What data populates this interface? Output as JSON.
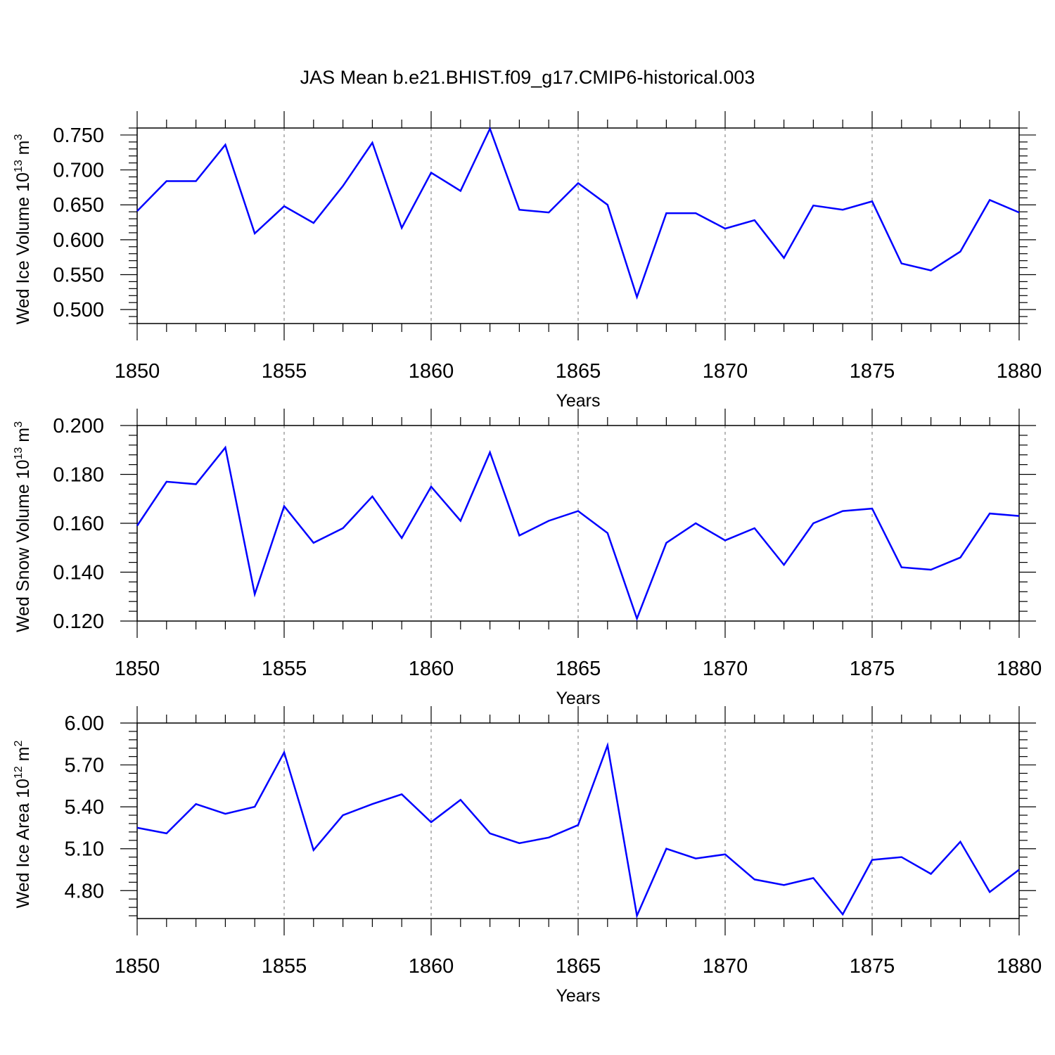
{
  "title": "JAS Mean b.e21.BHIST.f09_g17.CMIP6-historical.003",
  "chart_data": [
    {
      "type": "line",
      "ylabel_main": "Wed Ice Volume 10",
      "ylabel_exp": "13",
      "ylabel_unit": " m",
      "ylabel_unit_exp": "3",
      "xlabel": "Years",
      "xlim": [
        1850,
        1880
      ],
      "ylim": [
        0.48,
        0.76
      ],
      "yticks": [
        0.5,
        0.55,
        0.6,
        0.65,
        0.7,
        0.75
      ],
      "ytick_labels": [
        "0.500",
        "0.550",
        "0.600",
        "0.650",
        "0.700",
        "0.750"
      ],
      "xticks": [
        1850,
        1855,
        1860,
        1865,
        1870,
        1875,
        1880
      ],
      "xtick_labels": [
        "1850",
        "1855",
        "1860",
        "1865",
        "1870",
        "1875",
        "1880"
      ],
      "line_color": "#0000ff",
      "x": [
        1850,
        1851,
        1852,
        1853,
        1854,
        1855,
        1856,
        1857,
        1858,
        1859,
        1860,
        1861,
        1862,
        1863,
        1864,
        1865,
        1866,
        1867,
        1868,
        1869,
        1870,
        1871,
        1872,
        1873,
        1874,
        1875,
        1876,
        1877,
        1878,
        1879,
        1880
      ],
      "values": [
        0.641,
        0.684,
        0.684,
        0.736,
        0.609,
        0.648,
        0.624,
        0.677,
        0.739,
        0.617,
        0.696,
        0.67,
        0.759,
        0.643,
        0.639,
        0.681,
        0.65,
        0.518,
        0.638,
        0.638,
        0.616,
        0.628,
        0.574,
        0.649,
        0.643,
        0.655,
        0.566,
        0.556,
        0.583,
        0.657,
        0.639
      ]
    },
    {
      "type": "line",
      "ylabel_main": "Wed Snow Volume 10",
      "ylabel_exp": "13",
      "ylabel_unit": " m",
      "ylabel_unit_exp": "3",
      "xlabel": "Years",
      "xlim": [
        1850,
        1880
      ],
      "ylim": [
        0.12,
        0.2
      ],
      "yticks": [
        0.12,
        0.14,
        0.16,
        0.18,
        0.2
      ],
      "ytick_labels": [
        "0.120",
        "0.140",
        "0.160",
        "0.180",
        "0.200"
      ],
      "xticks": [
        1850,
        1855,
        1860,
        1865,
        1870,
        1875,
        1880
      ],
      "xtick_labels": [
        "1850",
        "1855",
        "1860",
        "1865",
        "1870",
        "1875",
        "1880"
      ],
      "line_color": "#0000ff",
      "x": [
        1850,
        1851,
        1852,
        1853,
        1854,
        1855,
        1856,
        1857,
        1858,
        1859,
        1860,
        1861,
        1862,
        1863,
        1864,
        1865,
        1866,
        1867,
        1868,
        1869,
        1870,
        1871,
        1872,
        1873,
        1874,
        1875,
        1876,
        1877,
        1878,
        1879,
        1880
      ],
      "values": [
        0.159,
        0.177,
        0.176,
        0.191,
        0.131,
        0.167,
        0.152,
        0.158,
        0.171,
        0.154,
        0.175,
        0.161,
        0.189,
        0.155,
        0.161,
        0.165,
        0.156,
        0.121,
        0.152,
        0.16,
        0.153,
        0.158,
        0.143,
        0.16,
        0.165,
        0.166,
        0.142,
        0.141,
        0.146,
        0.164,
        0.163
      ]
    },
    {
      "type": "line",
      "ylabel_main": "Wed Ice Area 10",
      "ylabel_exp": "12",
      "ylabel_unit": " m",
      "ylabel_unit_exp": "2",
      "xlabel": "Years",
      "xlim": [
        1850,
        1880
      ],
      "ylim": [
        4.6,
        6.0
      ],
      "yticks": [
        4.8,
        5.1,
        5.4,
        5.7,
        6.0
      ],
      "ytick_labels": [
        "4.80",
        "5.10",
        "5.40",
        "5.70",
        "6.00"
      ],
      "xticks": [
        1850,
        1855,
        1860,
        1865,
        1870,
        1875,
        1880
      ],
      "xtick_labels": [
        "1850",
        "1855",
        "1860",
        "1865",
        "1870",
        "1875",
        "1880"
      ],
      "line_color": "#0000ff",
      "x": [
        1850,
        1851,
        1852,
        1853,
        1854,
        1855,
        1856,
        1857,
        1858,
        1859,
        1860,
        1861,
        1862,
        1863,
        1864,
        1865,
        1866,
        1867,
        1868,
        1869,
        1870,
        1871,
        1872,
        1873,
        1874,
        1875,
        1876,
        1877,
        1878,
        1879,
        1880
      ],
      "values": [
        5.25,
        5.21,
        5.42,
        5.35,
        5.4,
        5.79,
        5.09,
        5.34,
        5.42,
        5.49,
        5.29,
        5.45,
        5.21,
        5.14,
        5.18,
        5.27,
        5.84,
        4.62,
        5.1,
        5.03,
        5.06,
        4.88,
        4.84,
        4.89,
        4.63,
        5.02,
        5.04,
        4.92,
        5.15,
        4.79,
        4.95
      ]
    }
  ]
}
